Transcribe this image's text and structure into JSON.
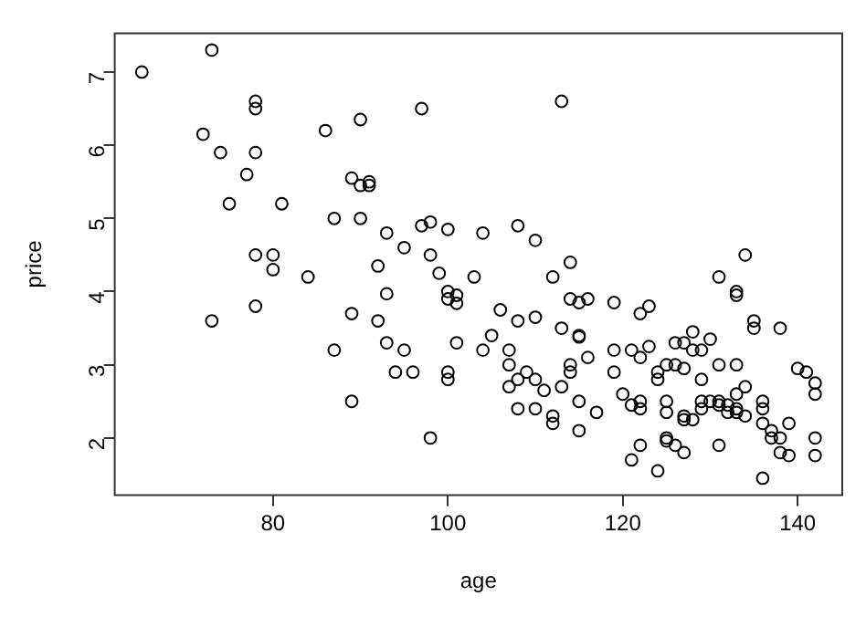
{
  "chart_data": {
    "type": "scatter",
    "xlabel": "age",
    "ylabel": "price",
    "xlim": [
      61.9,
      145.1
    ],
    "ylim": [
      1.22,
      7.53
    ],
    "xticks": [
      80,
      100,
      120,
      140
    ],
    "yticks": [
      2,
      3,
      4,
      5,
      6,
      7
    ],
    "grid": false,
    "legend": false,
    "marker": "circle",
    "series": [
      {
        "color": "#000000",
        "x": [
          65,
          73,
          78,
          78,
          72,
          74,
          78,
          77,
          75,
          81,
          86,
          90,
          89,
          90,
          91,
          91,
          87,
          90,
          93,
          95,
          97,
          97,
          98,
          98,
          99,
          78,
          80,
          80,
          84,
          92,
          93,
          113,
          100,
          104,
          108,
          110,
          103,
          112,
          114,
          131,
          134,
          133,
          133,
          100,
          100,
          101,
          101,
          106,
          114,
          115,
          116,
          119,
          123,
          122,
          108,
          110,
          113,
          135,
          135,
          138,
          105,
          115,
          115,
          101,
          104,
          107,
          119,
          121,
          123,
          122,
          116,
          128,
          126,
          127,
          128,
          129,
          130,
          107,
          114,
          114,
          100,
          100,
          109,
          108,
          110,
          107,
          111,
          113,
          119,
          124,
          124,
          125,
          126,
          127,
          129,
          131,
          133,
          120,
          121,
          122,
          122,
          125,
          125,
          127,
          127,
          128,
          129,
          129,
          130,
          131,
          131,
          132,
          132,
          133,
          133,
          133,
          134,
          134,
          136,
          136,
          136,
          137,
          137,
          138,
          139,
          138,
          139,
          140,
          141,
          142,
          142,
          142,
          142,
          108,
          110,
          112,
          112,
          115,
          117,
          115,
          125,
          125,
          126,
          127,
          122,
          121,
          124,
          131,
          136,
          73,
          78,
          89,
          92,
          87,
          93,
          95,
          94,
          96,
          89,
          98
        ],
        "values": [
          7.0,
          7.3,
          6.6,
          6.5,
          6.15,
          5.9,
          5.9,
          5.6,
          5.2,
          5.2,
          6.2,
          6.35,
          5.55,
          5.45,
          5.5,
          5.45,
          5.0,
          5.0,
          4.8,
          4.6,
          6.5,
          4.9,
          4.95,
          4.5,
          4.25,
          4.5,
          4.5,
          4.3,
          4.2,
          4.35,
          3.97,
          6.6,
          4.85,
          4.8,
          4.9,
          4.7,
          4.2,
          4.2,
          4.4,
          4.2,
          4.5,
          4.0,
          3.95,
          4.0,
          3.9,
          3.95,
          3.84,
          3.75,
          3.9,
          3.85,
          3.9,
          3.85,
          3.8,
          3.7,
          3.6,
          3.65,
          3.5,
          3.6,
          3.5,
          3.5,
          3.4,
          3.4,
          3.38,
          3.3,
          3.2,
          3.2,
          3.2,
          3.2,
          3.25,
          3.1,
          3.1,
          3.45,
          3.3,
          3.3,
          3.2,
          3.2,
          3.35,
          3.0,
          3.0,
          2.9,
          2.9,
          2.8,
          2.9,
          2.8,
          2.8,
          2.7,
          2.65,
          2.7,
          2.9,
          2.9,
          2.8,
          3.0,
          3.0,
          2.95,
          2.8,
          3.0,
          3.0,
          2.6,
          2.45,
          2.5,
          2.4,
          2.5,
          2.35,
          2.3,
          2.25,
          2.25,
          2.5,
          2.4,
          2.5,
          2.5,
          2.45,
          2.45,
          2.35,
          2.6,
          2.4,
          2.35,
          2.7,
          2.3,
          2.5,
          2.4,
          2.2,
          2.1,
          2.0,
          2.0,
          2.2,
          1.8,
          1.76,
          2.95,
          2.9,
          2.75,
          2.6,
          2.0,
          1.76,
          2.4,
          2.4,
          2.3,
          2.2,
          2.5,
          2.35,
          2.1,
          2.0,
          1.96,
          1.9,
          1.8,
          1.9,
          1.7,
          1.55,
          1.9,
          1.45,
          3.6,
          3.8,
          3.7,
          3.6,
          3.2,
          3.3,
          3.2,
          2.9,
          2.9,
          2.5,
          2.0
        ]
      }
    ]
  }
}
